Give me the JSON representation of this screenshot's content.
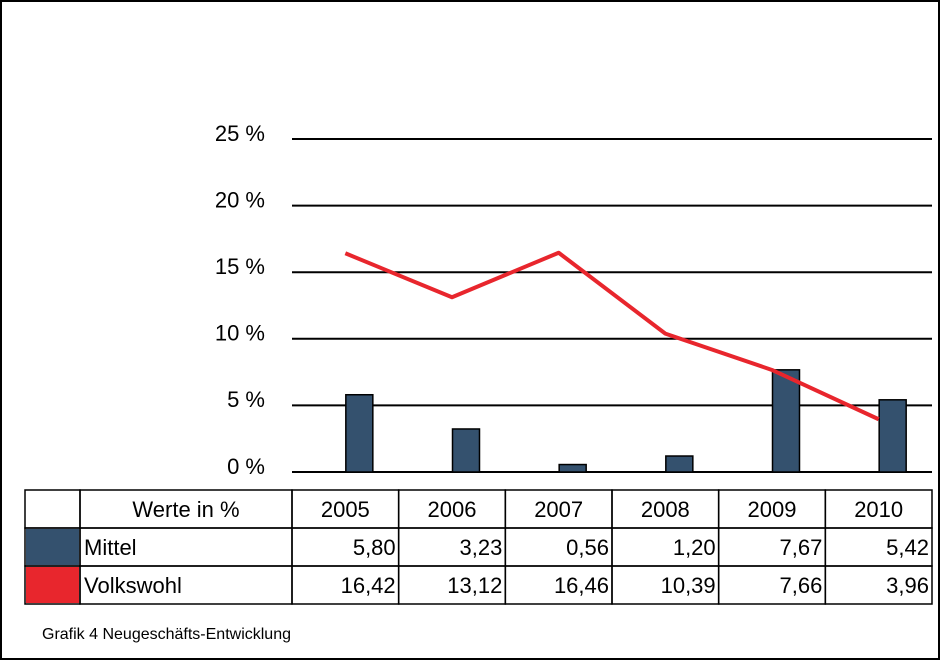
{
  "chart_data": {
    "type": "bar-line",
    "table_header": "Werte in %",
    "categories": [
      "2005",
      "2006",
      "2007",
      "2008",
      "2009",
      "2010"
    ],
    "series": [
      {
        "name": "Mittel",
        "color": "#34516e",
        "type": "bar",
        "values": [
          5.8,
          3.23,
          0.56,
          1.2,
          7.67,
          5.42
        ],
        "value_labels": [
          "5,80",
          "3,23",
          "0,56",
          "1,20",
          "7,67",
          "5,42"
        ]
      },
      {
        "name": "Volkswohl",
        "color": "#e8262d",
        "type": "line",
        "values": [
          16.42,
          13.12,
          16.46,
          10.39,
          7.66,
          3.96
        ],
        "value_labels": [
          "16,42",
          "13,12",
          "16,46",
          "10,39",
          "7,66",
          "3,96"
        ]
      }
    ],
    "ylim": [
      0,
      25
    ],
    "yticks": [
      {
        "value": 0,
        "label": "0 %"
      },
      {
        "value": 5,
        "label": "5 %"
      },
      {
        "value": 10,
        "label": "10 %"
      },
      {
        "value": 15,
        "label": "15 %"
      },
      {
        "value": 20,
        "label": "20 %"
      },
      {
        "value": 25,
        "label": "25 %"
      }
    ],
    "grid": true,
    "caption": "Grafik 4 Neugeschäfts-Entwicklung"
  }
}
